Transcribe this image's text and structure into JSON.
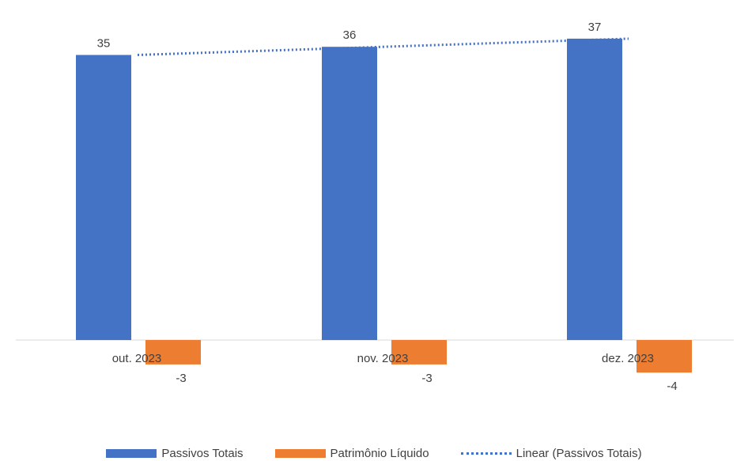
{
  "chart_data": {
    "type": "bar",
    "categories": [
      "out. 2023",
      "nov. 2023",
      "dez. 2023"
    ],
    "series": [
      {
        "name": "Passivos Totais",
        "values": [
          35,
          36,
          37
        ],
        "color": "#4472C4"
      },
      {
        "name": "Patrimônio Líquido",
        "values": [
          -3,
          -3,
          -4
        ],
        "color": "#ED7D31"
      }
    ],
    "trendline": {
      "name": "Linear (Passivos Totais)",
      "series": "Passivos Totais",
      "style": "dotted",
      "color": "#4472C4"
    },
    "ylim": [
      -4,
      37
    ],
    "grid": false,
    "legend_position": "bottom",
    "data_labels": true
  },
  "legend": [
    {
      "label": "Passivos Totais",
      "kind": "bar",
      "color": "#4472C4"
    },
    {
      "label": "Patrimônio Líquido",
      "kind": "bar",
      "color": "#ED7D31"
    },
    {
      "label": "Linear (Passivos Totais)",
      "kind": "dotted-line",
      "color": "#4472C4"
    }
  ]
}
